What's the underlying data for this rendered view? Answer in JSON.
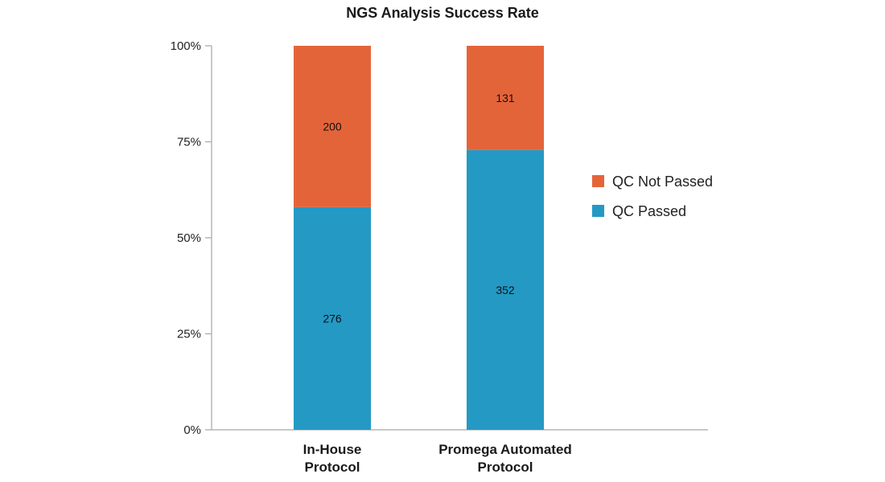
{
  "chart_data": {
    "type": "bar",
    "stacked": true,
    "normalized": true,
    "title": "NGS Analysis Success Rate",
    "xlabel": "",
    "ylabel": "",
    "ylim": [
      0,
      100
    ],
    "yticks": [
      "0%",
      "25%",
      "50%",
      "75%",
      "100%"
    ],
    "ytick_values": [
      0,
      25,
      50,
      75,
      100
    ],
    "categories": [
      [
        "In-House",
        "Protocol"
      ],
      [
        "Promega Automated",
        "Protocol"
      ]
    ],
    "series": [
      {
        "name": "QC Passed",
        "color": "#2499c4",
        "values": [
          276,
          352
        ]
      },
      {
        "name": "QC Not Passed",
        "color": "#e4643a",
        "values": [
          200,
          131
        ]
      }
    ],
    "legend": {
      "placement": "right",
      "order": [
        "QC Not Passed",
        "QC Passed"
      ]
    },
    "grid": false
  }
}
